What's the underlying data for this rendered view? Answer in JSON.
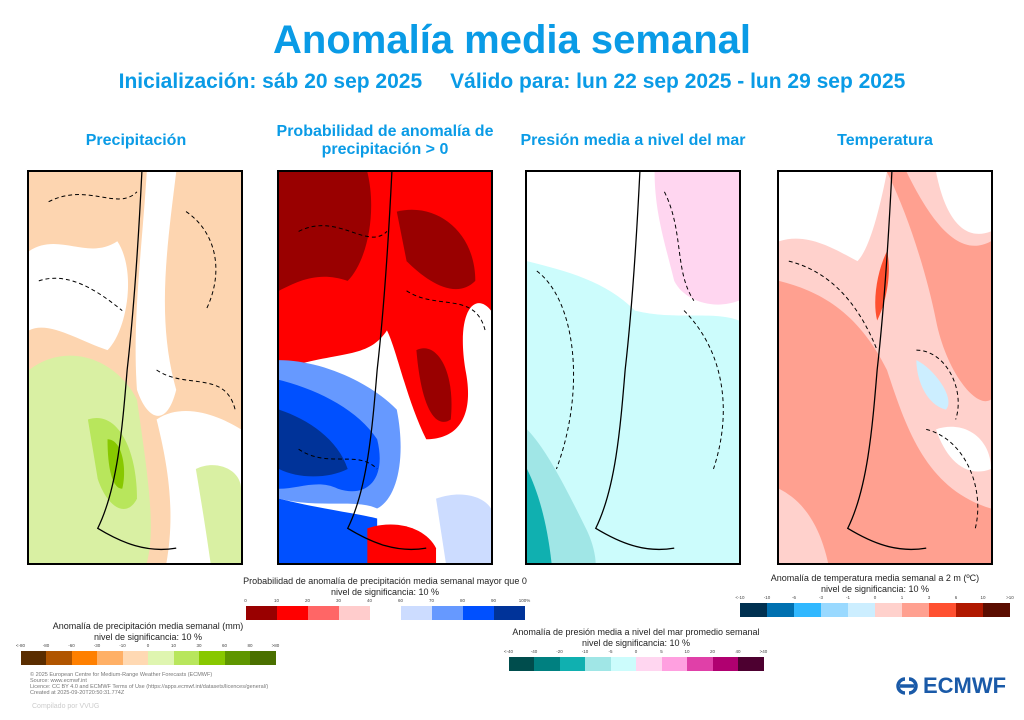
{
  "header": {
    "title": "Anomalía media semanal",
    "init": "Inicialización: sáb 20 sep 2025",
    "valid": "Válido para: lun 22 sep 2025 - lun 29 sep 2025"
  },
  "panels": [
    {
      "title": "Precipitación"
    },
    {
      "title": "Probabilidad de anomalía de precipitación > 0"
    },
    {
      "title": "Presión media a nivel del mar"
    },
    {
      "title": "Temperatura"
    }
  ],
  "legends": {
    "precip": {
      "title": "Anomalía de precipitación media semanal (mm)",
      "sig": "nivel de significancia: 10 %",
      "ticks": [
        "<-80",
        "-80",
        "-60",
        "-30",
        "-10",
        "0",
        "10",
        "30",
        "60",
        "80",
        ">80"
      ],
      "colors": [
        "#5a2d00",
        "#b05500",
        "#ff8000",
        "#ffb066",
        "#ffd9b3",
        "#dff5b0",
        "#b8e65c",
        "#88c800",
        "#5f9600",
        "#4a7000"
      ]
    },
    "prob": {
      "title": "Probabilidad de anomalía de precipitación media semanal mayor que 0",
      "sig": "nivel de significancia: 10 %",
      "ticks_low": [
        "0",
        "10",
        "20",
        "30",
        "40"
      ],
      "ticks_high": [
        "60",
        "70",
        "80",
        "90",
        "100%"
      ],
      "colors_low": [
        "#990000",
        "#ff0000",
        "#ff6666",
        "#ffcccc"
      ],
      "colors_high": [
        "#ccdcff",
        "#6699ff",
        "#0050ff",
        "#003399"
      ]
    },
    "pressure": {
      "title": "Anomalía de presión media a nivel del mar promedio semanal",
      "sig": "nivel de significancia: 10 %",
      "ticks": [
        "<-40",
        "-40",
        "-20",
        "-10",
        "-5",
        "0",
        "5",
        "10",
        "20",
        "40",
        ">40"
      ],
      "colors": [
        "#004d4d",
        "#008080",
        "#10b0b0",
        "#a0e6e6",
        "#ccfcfc",
        "#ffd6f0",
        "#ffa0e0",
        "#e040a8",
        "#b00070",
        "#4d0030"
      ]
    },
    "temp": {
      "title": "Anomalía de temperatura media semanal a 2 m (ºC)",
      "sig": "nivel de significancia: 10 %",
      "ticks": [
        "<-10",
        "-10",
        "-6",
        "-3",
        "-1",
        "0",
        "1",
        "3",
        "6",
        "10",
        ">10"
      ],
      "colors": [
        "#003050",
        "#0070b0",
        "#30b8ff",
        "#99d9ff",
        "#cceeff",
        "#ffd1cc",
        "#ffa090",
        "#ff5030",
        "#b01800",
        "#5a0c00"
      ]
    }
  },
  "footer": {
    "lines": [
      "© 2025 European Centre for Medium-Range Weather Forecasts (ECMWF)",
      "Source: www.ecmwf.int",
      "Licence: CC BY 4.0 and ECMWF Terms of Use (https://apps.ecmwf.int/datasets/licences/general/)",
      "Created at 2025-09-20T20:50:31.774Z"
    ],
    "compiled": "Compilado por VVUG",
    "logo": "ECMWF"
  }
}
